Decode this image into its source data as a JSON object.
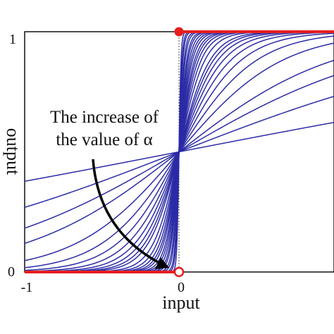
{
  "chart_data": {
    "type": "line",
    "xlabel": "input",
    "ylabel": "output",
    "xlim": [
      -1,
      1
    ],
    "ylim": [
      0,
      1
    ],
    "x_ticks": [
      "-1",
      "0"
    ],
    "y_ticks": [
      "0",
      "1"
    ],
    "grid": false,
    "annotation": {
      "line1": "The increase of",
      "line2": "the value of α"
    },
    "curve_color": "#2b2ba6",
    "step_color": "#e61e1e",
    "marker_color": "#e61e1e",
    "alpha_values": [
      0.5,
      1,
      1.5,
      2,
      3,
      4,
      5,
      6,
      7,
      8,
      9,
      10,
      12,
      14,
      16,
      18,
      20,
      23,
      26,
      30,
      35,
      40,
      50,
      60,
      80,
      100,
      150
    ],
    "step_function": {
      "segments": [
        {
          "x": [
            -1,
            0
          ],
          "y": 0
        },
        {
          "x": [
            0,
            1
          ],
          "y": 1
        }
      ],
      "filled_point": {
        "x": 0,
        "y": 1
      },
      "open_point": {
        "x": 0,
        "y": 0
      }
    }
  }
}
